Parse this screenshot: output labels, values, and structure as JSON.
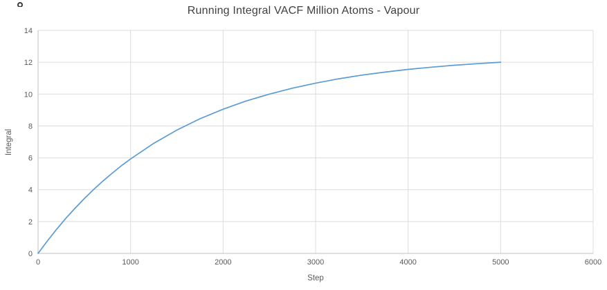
{
  "chart": {
    "title": "Running Integral VACF Million Atoms - Vapour",
    "xlabel": "Step",
    "ylabel": "Integral"
  },
  "style": {
    "line_color": "#5B9BD5",
    "grid_color": "#DCDCDC",
    "axis_color": "#BFBFBF",
    "tick_label_color": "#595959",
    "title_color": "#3F3F3F",
    "background": "#FFFFFF"
  },
  "chart_data": {
    "type": "line",
    "title": "Running Integral VACF Million Atoms - Vapour",
    "xlabel": "Step",
    "ylabel": "Integral",
    "xlim": [
      0,
      6000
    ],
    "ylim": [
      0,
      14
    ],
    "x_ticks": [
      0,
      1000,
      2000,
      3000,
      4000,
      5000,
      6000
    ],
    "y_ticks": [
      0,
      2,
      4,
      6,
      8,
      10,
      12,
      14
    ],
    "grid": true,
    "legend_position": "none",
    "series": [
      {
        "name": "Running Integral VACF",
        "color": "#5B9BD5",
        "x": [
          0,
          100,
          200,
          300,
          400,
          500,
          600,
          700,
          800,
          900,
          1000,
          1250,
          1500,
          1750,
          2000,
          2250,
          2500,
          2750,
          3000,
          3250,
          3500,
          3750,
          4000,
          4250,
          4500,
          4750,
          5000
        ],
        "y": [
          0,
          0.78,
          1.51,
          2.2,
          2.84,
          3.44,
          4.01,
          4.54,
          5.03,
          5.5,
          5.93,
          6.91,
          7.74,
          8.45,
          9.05,
          9.57,
          10.0,
          10.37,
          10.69,
          10.96,
          11.19,
          11.38,
          11.55,
          11.69,
          11.81,
          11.91,
          12.0
        ]
      }
    ]
  }
}
